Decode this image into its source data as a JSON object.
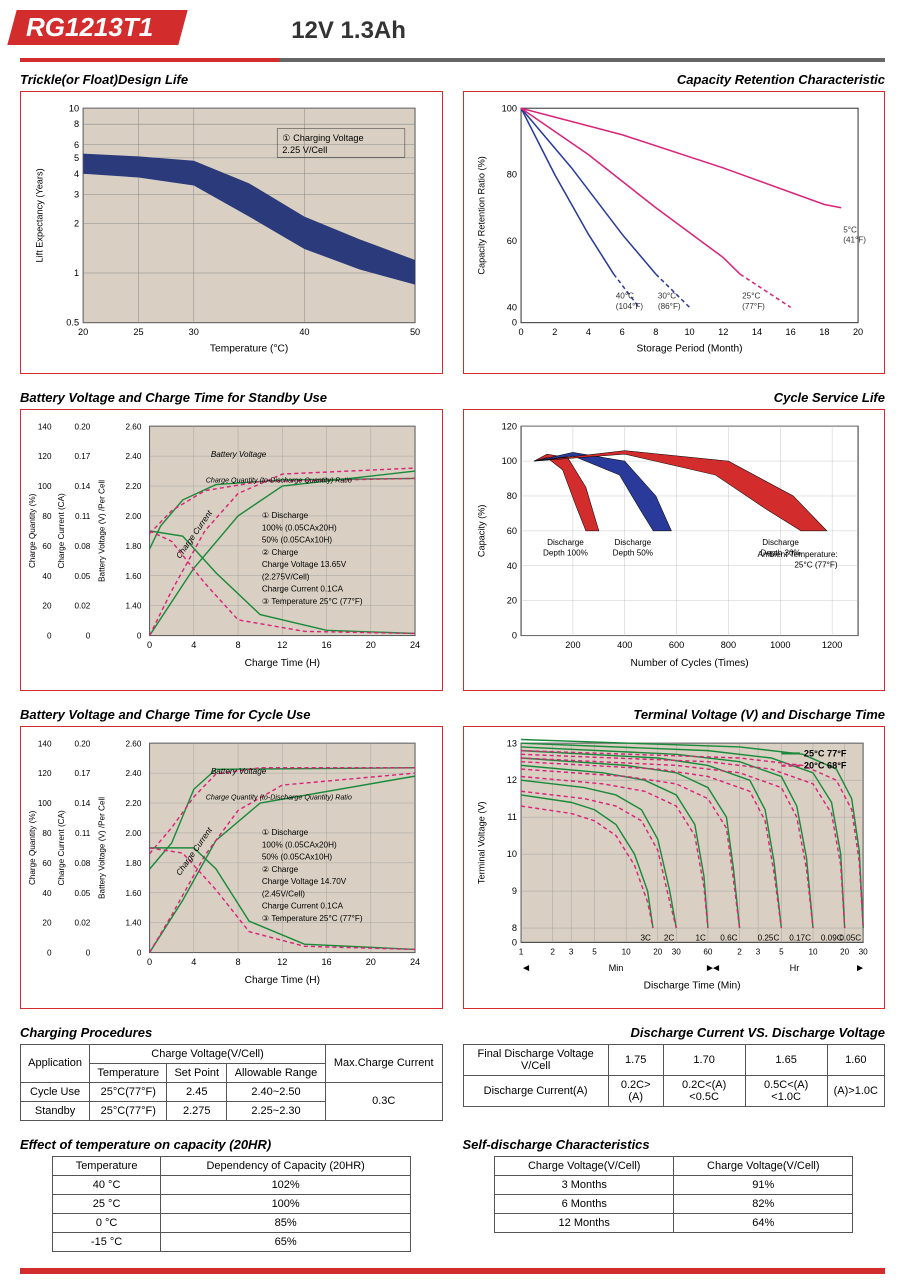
{
  "header": {
    "model": "RG1213T1",
    "spec": "12V  1.3Ah"
  },
  "charts": {
    "trickle": {
      "title": "Trickle(or Float)Design Life",
      "ylabel": "Lift  Expectancy (Years)",
      "xlabel": "Temperature (°C)",
      "y_ticks": [
        "0.5",
        "1",
        "2",
        "3",
        "4",
        "5",
        "6",
        "8",
        "10"
      ],
      "x_ticks": [
        "20",
        "25",
        "30",
        "40",
        "50"
      ],
      "legend": "① Charging Voltage\n2.25 V/Cell",
      "band_upper": [
        [
          20,
          5.3
        ],
        [
          25,
          5.1
        ],
        [
          30,
          4.8
        ],
        [
          35,
          3.5
        ],
        [
          40,
          2.2
        ],
        [
          45,
          1.6
        ],
        [
          50,
          1.2
        ]
      ],
      "band_lower": [
        [
          20,
          4.0
        ],
        [
          25,
          3.8
        ],
        [
          30,
          3.4
        ],
        [
          35,
          2.2
        ],
        [
          40,
          1.4
        ],
        [
          45,
          1.05
        ],
        [
          50,
          0.85
        ]
      ],
      "band_color": "#2a3a7a",
      "grid_color": "#888",
      "bg_color": "#d9d0c3"
    },
    "retention": {
      "title": "Capacity Retention Characteristic",
      "ylabel": "Capacity Retention Ratio (%)",
      "xlabel": "Storage Period (Month)",
      "y_ticks": [
        "0",
        "40",
        "60",
        "80",
        "100"
      ],
      "x_ticks": [
        "0",
        "2",
        "4",
        "6",
        "8",
        "10",
        "12",
        "14",
        "16",
        "18",
        "20"
      ],
      "bg_color": "#ffffff",
      "grid_color": "#cccccc",
      "curves": [
        {
          "label": "40°C\n(104°F)",
          "color": "#2a3a9a",
          "solid": [
            [
              0,
              100
            ],
            [
              2,
              80
            ],
            [
              4,
              62
            ],
            [
              5.5,
              50
            ]
          ],
          "dashed": [
            [
              5.5,
              50
            ],
            [
              7,
              40
            ]
          ]
        },
        {
          "label": "30°C\n(86°F)",
          "color": "#2a3a9a",
          "solid": [
            [
              0,
              100
            ],
            [
              3,
              82
            ],
            [
              6,
              62
            ],
            [
              8,
              50
            ]
          ],
          "dashed": [
            [
              8,
              50
            ],
            [
              10,
              40
            ]
          ]
        },
        {
          "label": "25°C\n(77°F)",
          "color": "#d9247a",
          "solid": [
            [
              0,
              100
            ],
            [
              4,
              86
            ],
            [
              8,
              70
            ],
            [
              12,
              55
            ],
            [
              13,
              50
            ]
          ],
          "dashed": [
            [
              13,
              50
            ],
            [
              16,
              40
            ]
          ]
        },
        {
          "label": "5°C\n(41°F)",
          "color": "#d9247a",
          "solid": [
            [
              0,
              100
            ],
            [
              6,
              92
            ],
            [
              12,
              82
            ],
            [
              18,
              71
            ],
            [
              19,
              70
            ]
          ],
          "dashed": []
        }
      ]
    },
    "standby": {
      "title": "Battery Voltage and Charge Time for Standby Use",
      "xlabel": "Charge Time (H)",
      "x_ticks": [
        "0",
        "4",
        "8",
        "12",
        "16",
        "20",
        "24"
      ],
      "y1_label": "Charge Quantity (%)",
      "y1_ticks": [
        "0",
        "20",
        "40",
        "60",
        "80",
        "100",
        "120",
        "140"
      ],
      "y2_label": "Charge Current (CA)",
      "y2_ticks": [
        "0",
        "0.02",
        "0.05",
        "0.08",
        "0.11",
        "0.14",
        "0.17",
        "0.20"
      ],
      "y3_label": "Battery Voltage (V) /Per Cell",
      "y3_ticks": [
        "0",
        "1.40",
        "1.60",
        "1.80",
        "2.00",
        "2.20",
        "2.40",
        "2.60"
      ],
      "bg_color": "#d9d0c3",
      "grid_color": "#999",
      "curves_solid_color": "#1a8a3a",
      "curves_dash_color": "#d9247a",
      "bv_solid": [
        [
          0,
          1.8
        ],
        [
          1,
          1.95
        ],
        [
          3,
          2.12
        ],
        [
          6,
          2.22
        ],
        [
          12,
          2.25
        ],
        [
          24,
          2.26
        ]
      ],
      "bv_dash": [
        [
          0,
          1.9
        ],
        [
          2,
          2.05
        ],
        [
          5,
          2.18
        ],
        [
          10,
          2.24
        ],
        [
          24,
          2.26
        ]
      ],
      "cq_solid": [
        [
          0,
          0
        ],
        [
          4,
          45
        ],
        [
          8,
          80
        ],
        [
          12,
          100
        ],
        [
          24,
          110
        ]
      ],
      "cq_dash": [
        [
          0,
          0
        ],
        [
          2,
          30
        ],
        [
          5,
          70
        ],
        [
          8,
          95
        ],
        [
          12,
          108
        ],
        [
          24,
          112
        ]
      ],
      "cc_solid": [
        [
          0,
          0.1
        ],
        [
          3,
          0.095
        ],
        [
          6,
          0.06
        ],
        [
          10,
          0.02
        ],
        [
          16,
          0.005
        ],
        [
          24,
          0.002
        ]
      ],
      "cc_dash": [
        [
          0,
          0.1
        ],
        [
          2,
          0.09
        ],
        [
          5,
          0.05
        ],
        [
          8,
          0.015
        ],
        [
          14,
          0.004
        ],
        [
          24,
          0.002
        ]
      ],
      "annot": [
        "① Discharge",
        "   100% (0.05CAx20H)",
        "   50% (0.05CAx10H)",
        "② Charge",
        "   Charge Voltage 13.65V",
        "   (2.275V/Cell)",
        "   Charge Current 0.1CA",
        "③ Temperature 25°C (77°F)"
      ],
      "inline_labels": [
        "Battery Voltage",
        "Charge Quantity (to-Discharge Quantity) Ratio",
        "Charge Current"
      ]
    },
    "cycle_life": {
      "title": "Cycle Service Life",
      "ylabel": "Capacity (%)",
      "xlabel": "Number of Cycles (Times)",
      "y_ticks": [
        "0",
        "20",
        "40",
        "60",
        "80",
        "100",
        "120"
      ],
      "x_ticks": [
        "200",
        "400",
        "600",
        "800",
        "1000",
        "1200"
      ],
      "bg_color": "#ffffff",
      "grid_color": "#bbb",
      "bands": [
        {
          "label": "Discharge\nDepth 100%",
          "color": "#d32c2c",
          "upper": [
            [
              50,
              100
            ],
            [
              100,
              104
            ],
            [
              180,
              102
            ],
            [
              250,
              85
            ],
            [
              300,
              60
            ]
          ],
          "lower": [
            [
              50,
              100
            ],
            [
              100,
              102
            ],
            [
              160,
              95
            ],
            [
              210,
              75
            ],
            [
              250,
              60
            ]
          ]
        },
        {
          "label": "Discharge\nDepth 50%",
          "color": "#2a3a9a",
          "upper": [
            [
              50,
              100
            ],
            [
              200,
              105
            ],
            [
              400,
              100
            ],
            [
              520,
              80
            ],
            [
              580,
              60
            ]
          ],
          "lower": [
            [
              50,
              100
            ],
            [
              200,
              103
            ],
            [
              380,
              92
            ],
            [
              460,
              72
            ],
            [
              510,
              60
            ]
          ]
        },
        {
          "label": "Discharge\nDepth 30%",
          "color": "#d32c2c",
          "upper": [
            [
              50,
              100
            ],
            [
              400,
              106
            ],
            [
              800,
              100
            ],
            [
              1050,
              80
            ],
            [
              1180,
              60
            ]
          ],
          "lower": [
            [
              50,
              100
            ],
            [
              400,
              104
            ],
            [
              750,
              92
            ],
            [
              950,
              72
            ],
            [
              1080,
              60
            ]
          ]
        }
      ],
      "ambient": "Ambient Temperature:\n25°C (77°F)"
    },
    "cycle_use": {
      "title": "Battery Voltage and Charge Time for Cycle Use",
      "xlabel": "Charge Time (H)",
      "x_ticks": [
        "0",
        "4",
        "8",
        "12",
        "16",
        "20",
        "24"
      ],
      "y1_label": "Charge Quantity (%)",
      "y1_ticks": [
        "0",
        "20",
        "40",
        "60",
        "80",
        "100",
        "120",
        "140"
      ],
      "y2_label": "Charge Current (CA)",
      "y2_ticks": [
        "0",
        "0.02",
        "0.05",
        "0.08",
        "0.11",
        "0.14",
        "0.17",
        "0.20"
      ],
      "y3_label": "Battery Voltage (V) /Per Cell",
      "y3_ticks": [
        "0",
        "1.40",
        "1.60",
        "1.80",
        "2.00",
        "2.20",
        "2.40",
        "2.60"
      ],
      "bg_color": "#d9d0c3",
      "grid_color": "#999",
      "curves_solid_color": "#1a8a3a",
      "curves_dash_color": "#d9247a",
      "bv_solid": [
        [
          0,
          1.78
        ],
        [
          2,
          1.95
        ],
        [
          4,
          2.3
        ],
        [
          6,
          2.43
        ],
        [
          24,
          2.44
        ]
      ],
      "bv_dash": [
        [
          0,
          1.88
        ],
        [
          2,
          2.05
        ],
        [
          4,
          2.25
        ],
        [
          6,
          2.4
        ],
        [
          10,
          2.44
        ],
        [
          24,
          2.44
        ]
      ],
      "cq_solid": [
        [
          0,
          0
        ],
        [
          3,
          35
        ],
        [
          6,
          75
        ],
        [
          10,
          100
        ],
        [
          24,
          118
        ]
      ],
      "cq_dash": [
        [
          0,
          0
        ],
        [
          2,
          25
        ],
        [
          5,
          65
        ],
        [
          8,
          95
        ],
        [
          12,
          112
        ],
        [
          24,
          120
        ]
      ],
      "cc_solid": [
        [
          0,
          0.1
        ],
        [
          4,
          0.1
        ],
        [
          6,
          0.08
        ],
        [
          9,
          0.03
        ],
        [
          14,
          0.008
        ],
        [
          24,
          0.003
        ]
      ],
      "cc_dash": [
        [
          0,
          0.1
        ],
        [
          3,
          0.095
        ],
        [
          6,
          0.06
        ],
        [
          9,
          0.02
        ],
        [
          14,
          0.006
        ],
        [
          24,
          0.003
        ]
      ],
      "annot": [
        "① Discharge",
        "   100% (0.05CAx20H)",
        "   50% (0.05CAx10H)",
        "② Charge",
        "   Charge Voltage 14.70V",
        "   (2.45V/Cell)",
        "   Charge Current 0.1CA",
        "③ Temperature 25°C (77°F)"
      ],
      "inline_labels": [
        "Battery Voltage",
        "Charge Quantity (to-Discharge Quantity) Ratio",
        "Charge Current"
      ]
    },
    "terminal": {
      "title": "Terminal Voltage (V) and Discharge Time",
      "ylabel": "Terminal Voltage (V)",
      "xlabel": "Discharge Time (Min)",
      "y_ticks": [
        "0",
        "8",
        "9",
        "10",
        "11",
        "12",
        "13"
      ],
      "x_sections": [
        "1",
        "2",
        "3",
        "5",
        "10",
        "20",
        "30",
        "60",
        "2",
        "3",
        "5",
        "10",
        "20",
        "30"
      ],
      "x_unit_left": "Min",
      "x_unit_right": "Hr",
      "bg_color": "#d9d0c3",
      "grid_color": "#999",
      "legend": [
        {
          "label": "25°C 77°F",
          "color": "#1a8a3a"
        },
        {
          "label": "20°C 68°F",
          "color": "#d9247a"
        }
      ],
      "curves": [
        {
          "label": "3C",
          "x": [
            1,
            3,
            5,
            8,
            12,
            16,
            18
          ],
          "y25": [
            11.6,
            11.4,
            11.2,
            10.8,
            10,
            9,
            8
          ],
          "y20": [
            11.3,
            11.1,
            10.9,
            10.5,
            9.7,
            8.7,
            8
          ]
        },
        {
          "label": "2C",
          "x": [
            1,
            4,
            8,
            14,
            20,
            26,
            30
          ],
          "y25": [
            12,
            11.8,
            11.6,
            11.2,
            10.4,
            9,
            8
          ],
          "y20": [
            11.7,
            11.5,
            11.3,
            10.9,
            10.1,
            8.7,
            8
          ]
        },
        {
          "label": "1C",
          "x": [
            1,
            6,
            15,
            30,
            45,
            55,
            60
          ],
          "y25": [
            12.4,
            12.2,
            12,
            11.6,
            10.8,
            9.4,
            8
          ],
          "y20": [
            12.1,
            11.9,
            11.7,
            11.3,
            10.5,
            9.1,
            8
          ]
        },
        {
          "label": "0.6C",
          "x": [
            1,
            10,
            30,
            60,
            90,
            105,
            120
          ],
          "y25": [
            12.6,
            12.4,
            12.2,
            11.8,
            11,
            9.6,
            8
          ],
          "y20": [
            12.3,
            12.1,
            11.9,
            11.5,
            10.7,
            9.3,
            8
          ]
        },
        {
          "label": "0.25C",
          "x": [
            1,
            20,
            60,
            150,
            210,
            255,
            300
          ],
          "y25": [
            12.8,
            12.6,
            12.4,
            12,
            11.2,
            9.8,
            8
          ],
          "y20": [
            12.5,
            12.3,
            12.1,
            11.7,
            10.9,
            9.5,
            8
          ]
        },
        {
          "label": "0.17C",
          "x": [
            1,
            30,
            120,
            300,
            420,
            520,
            600
          ],
          "y25": [
            12.9,
            12.7,
            12.5,
            12.1,
            11.3,
            9.9,
            8
          ],
          "y20": [
            12.6,
            12.4,
            12.2,
            11.8,
            11,
            9.6,
            8
          ]
        },
        {
          "label": "0.09C",
          "x": [
            1,
            60,
            240,
            600,
            900,
            1100,
            1200
          ],
          "y25": [
            13,
            12.8,
            12.6,
            12.2,
            11.4,
            10,
            8
          ],
          "y20": [
            12.7,
            12.5,
            12.3,
            11.9,
            11.1,
            9.7,
            8
          ]
        },
        {
          "label": "0.05C",
          "x": [
            1,
            120,
            480,
            1000,
            1400,
            1650,
            1800
          ],
          "y25": [
            13.1,
            12.9,
            12.7,
            12.3,
            11.5,
            10.1,
            8
          ],
          "y20": [
            12.8,
            12.6,
            12.4,
            12,
            11.2,
            9.8,
            8
          ]
        }
      ]
    }
  },
  "tables": {
    "charging": {
      "title": "Charging Procedures",
      "headers": {
        "app": "Application",
        "cv": "Charge Voltage(V/Cell)",
        "temp": "Temperature",
        "sp": "Set Point",
        "ar": "Allowable Range",
        "max": "Max.Charge Current"
      },
      "rows": [
        {
          "app": "Cycle Use",
          "temp": "25°C(77°F)",
          "sp": "2.45",
          "ar": "2.40~2.50"
        },
        {
          "app": "Standby",
          "temp": "25°C(77°F)",
          "sp": "2.275",
          "ar": "2.25~2.30"
        }
      ],
      "max": "0.3C"
    },
    "discharge_voltage": {
      "title": "Discharge Current VS. Discharge Voltage",
      "h1": "Final Discharge Voltage V/Cell",
      "v1": [
        "1.75",
        "1.70",
        "1.65",
        "1.60"
      ],
      "h2": "Discharge Current(A)",
      "v2": [
        "0.2C>(A)",
        "0.2C<(A)<0.5C",
        "0.5C<(A)<1.0C",
        "(A)>1.0C"
      ]
    },
    "temp_capacity": {
      "title": "Effect of temperature on capacity (20HR)",
      "h1": "Temperature",
      "h2": "Dependency of Capacity (20HR)",
      "rows": [
        [
          "40 °C",
          "102%"
        ],
        [
          "25 °C",
          "100%"
        ],
        [
          "0 °C",
          "85%"
        ],
        [
          "-15 °C",
          "65%"
        ]
      ]
    },
    "self_discharge": {
      "title": "Self-discharge Characteristics",
      "h1": "Charge Voltage(V/Cell)",
      "h2": "Charge Voltage(V/Cell)",
      "rows": [
        [
          "3 Months",
          "91%"
        ],
        [
          "6 Months",
          "82%"
        ],
        [
          "12 Months",
          "64%"
        ]
      ]
    }
  }
}
